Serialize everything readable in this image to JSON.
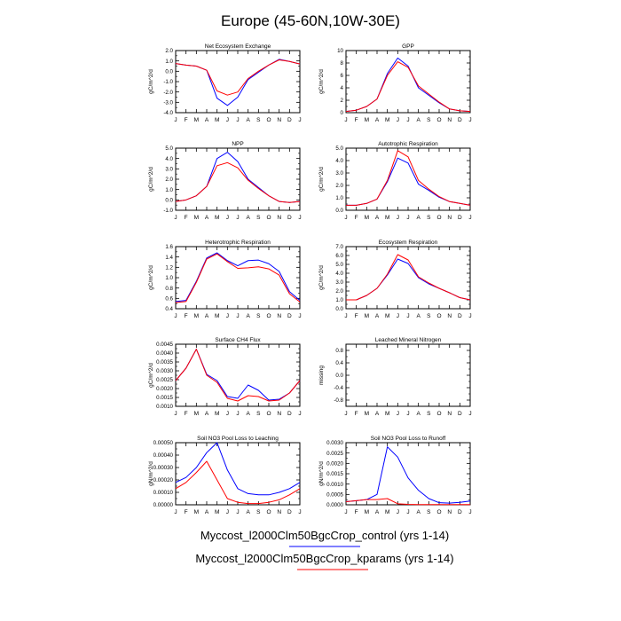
{
  "figure": {
    "title": "Europe (45-60N,10W-30E)",
    "legend": {
      "placement": "bottom-right",
      "entries": [
        {
          "label": "Myccost_l2000Clm50BgcCrop_control (yrs 1-14)",
          "color": "#0000ff"
        },
        {
          "label": "Myccost_l2000Clm50BgcCrop_kparams (yrs 1-14)",
          "color": "#ff0000"
        }
      ]
    }
  },
  "chart_data": [
    {
      "type": "line",
      "title": "Net Ecosystem Exchange",
      "ylabel": "gC/m^2/d",
      "x": [
        "J",
        "F",
        "M",
        "A",
        "M",
        "J",
        "J",
        "A",
        "S",
        "O",
        "N",
        "D",
        "J"
      ],
      "ylim": [
        -4.0,
        2.0
      ],
      "yticks": [
        "2.0",
        "1.0",
        "0.0",
        "-1.0",
        "-2.0",
        "-3.0",
        "-4.0"
      ],
      "yminor": [
        1.5,
        0.5,
        -0.5,
        -1.5,
        -2.5,
        -3.5
      ],
      "series": [
        {
          "color": "#0000ff",
          "values": [
            0.75,
            0.6,
            0.5,
            0.1,
            -2.6,
            -3.3,
            -2.5,
            -0.8,
            -0.1,
            0.6,
            1.15,
            0.95,
            0.7
          ]
        },
        {
          "color": "#ff0000",
          "values": [
            0.75,
            0.6,
            0.5,
            0.1,
            -1.9,
            -2.3,
            -2.0,
            -0.7,
            0.0,
            0.6,
            1.1,
            0.95,
            0.7
          ]
        }
      ]
    },
    {
      "type": "line",
      "title": "GPP",
      "ylabel": "gC/m^2/d",
      "x": [
        "J",
        "F",
        "M",
        "A",
        "M",
        "J",
        "J",
        "A",
        "S",
        "O",
        "N",
        "D",
        "J"
      ],
      "ylim": [
        0,
        10
      ],
      "yticks": [
        "10",
        "8",
        "6",
        "4",
        "2",
        "0"
      ],
      "yminor": [
        9,
        7,
        5,
        3,
        1
      ],
      "series": [
        {
          "color": "#0000ff",
          "values": [
            0.2,
            0.4,
            1.0,
            2.2,
            6.3,
            8.8,
            7.5,
            4.0,
            2.8,
            1.6,
            0.6,
            0.3,
            0.2
          ]
        },
        {
          "color": "#ff0000",
          "values": [
            0.2,
            0.4,
            1.0,
            2.2,
            6.0,
            8.2,
            7.3,
            4.3,
            3.0,
            1.7,
            0.6,
            0.3,
            0.2
          ]
        }
      ]
    },
    {
      "type": "line",
      "title": "NPP",
      "ylabel": "gC/m^2/d",
      "x": [
        "J",
        "F",
        "M",
        "A",
        "M",
        "J",
        "J",
        "A",
        "S",
        "O",
        "N",
        "D",
        "J"
      ],
      "ylim": [
        -1.0,
        5.0
      ],
      "yticks": [
        "5.0",
        "4.0",
        "3.0",
        "2.0",
        "1.0",
        "0.0",
        "-1.0"
      ],
      "yminor": [
        4.5,
        3.5,
        2.5,
        1.5,
        0.5,
        -0.5
      ],
      "series": [
        {
          "color": "#0000ff",
          "values": [
            -0.15,
            0.0,
            0.4,
            1.3,
            4.0,
            4.6,
            3.7,
            2.0,
            1.2,
            0.4,
            -0.15,
            -0.25,
            -0.15
          ]
        },
        {
          "color": "#ff0000",
          "values": [
            -0.15,
            0.0,
            0.4,
            1.3,
            3.3,
            3.6,
            3.1,
            1.9,
            1.1,
            0.4,
            -0.15,
            -0.25,
            -0.15
          ]
        }
      ]
    },
    {
      "type": "line",
      "title": "Autotrophic Respiration",
      "ylabel": "gC/m^2/d",
      "x": [
        "J",
        "F",
        "M",
        "A",
        "M",
        "J",
        "J",
        "A",
        "S",
        "O",
        "N",
        "D",
        "J"
      ],
      "ylim": [
        0.0,
        5.0
      ],
      "yticks": [
        "5.0",
        "4.0",
        "3.0",
        "2.0",
        "1.0",
        "0.0"
      ],
      "yminor": [
        4.5,
        3.5,
        2.5,
        1.5,
        0.5
      ],
      "series": [
        {
          "color": "#0000ff",
          "values": [
            0.4,
            0.4,
            0.55,
            0.9,
            2.3,
            4.2,
            3.8,
            2.1,
            1.6,
            1.05,
            0.7,
            0.55,
            0.4
          ]
        },
        {
          "color": "#ff0000",
          "values": [
            0.4,
            0.4,
            0.55,
            0.9,
            2.4,
            4.8,
            4.3,
            2.4,
            1.7,
            1.1,
            0.7,
            0.55,
            0.4
          ]
        }
      ]
    },
    {
      "type": "line",
      "title": "Heterotrophic Respiration",
      "ylabel": "gC/m^2/d",
      "x": [
        "J",
        "F",
        "M",
        "A",
        "M",
        "J",
        "J",
        "A",
        "S",
        "O",
        "N",
        "D",
        "J"
      ],
      "ylim": [
        0.4,
        1.6
      ],
      "yticks": [
        "1.6",
        "1.4",
        "1.2",
        "1.0",
        "0.8",
        "0.6",
        "0.4"
      ],
      "yminor": [
        1.5,
        1.3,
        1.1,
        0.9,
        0.7,
        0.5
      ],
      "series": [
        {
          "color": "#0000ff",
          "values": [
            0.54,
            0.56,
            0.93,
            1.38,
            1.48,
            1.33,
            1.23,
            1.33,
            1.34,
            1.27,
            1.12,
            0.73,
            0.56
          ]
        },
        {
          "color": "#ff0000",
          "values": [
            0.52,
            0.54,
            0.91,
            1.36,
            1.46,
            1.31,
            1.18,
            1.19,
            1.21,
            1.17,
            1.05,
            0.69,
            0.53
          ]
        }
      ]
    },
    {
      "type": "line",
      "title": "Ecosystem Respiration",
      "ylabel": "gC/m^2/d",
      "x": [
        "J",
        "F",
        "M",
        "A",
        "M",
        "J",
        "J",
        "A",
        "S",
        "O",
        "N",
        "D",
        "J"
      ],
      "ylim": [
        0.0,
        7.0
      ],
      "yticks": [
        "7.0",
        "6.0",
        "5.0",
        "4.0",
        "3.0",
        "2.0",
        "1.0",
        "0.0"
      ],
      "yminor": [
        6.5,
        5.5,
        4.5,
        3.5,
        2.5,
        1.5,
        0.5
      ],
      "series": [
        {
          "color": "#0000ff",
          "values": [
            1.0,
            1.0,
            1.5,
            2.3,
            3.8,
            5.6,
            5.1,
            3.5,
            2.8,
            2.3,
            1.8,
            1.25,
            1.0
          ]
        },
        {
          "color": "#ff0000",
          "values": [
            1.0,
            1.0,
            1.5,
            2.3,
            3.9,
            6.1,
            5.5,
            3.6,
            2.9,
            2.3,
            1.8,
            1.25,
            1.0
          ]
        }
      ]
    },
    {
      "type": "line",
      "title": "Surface CH4 Flux",
      "ylabel": "gC/m^2/d",
      "x": [
        "J",
        "F",
        "M",
        "A",
        "M",
        "J",
        "J",
        "A",
        "S",
        "O",
        "N",
        "D",
        "J"
      ],
      "ylim": [
        0.001,
        0.0045
      ],
      "yticks": [
        "0.0045",
        "0.0040",
        "0.0035",
        "0.0030",
        "0.0025",
        "0.0020",
        "0.0015",
        "0.0010"
      ],
      "yminor": [
        0.00425,
        0.00375,
        0.00325,
        0.00275,
        0.00225,
        0.00175,
        0.00125
      ],
      "series": [
        {
          "color": "#0000ff",
          "values": [
            0.00245,
            0.00315,
            0.00422,
            0.0028,
            0.00245,
            0.00155,
            0.00145,
            0.0022,
            0.0019,
            0.00135,
            0.0014,
            0.00175,
            0.00245
          ]
        },
        {
          "color": "#ff0000",
          "values": [
            0.00245,
            0.00315,
            0.00422,
            0.00275,
            0.00235,
            0.00145,
            0.0013,
            0.0016,
            0.00155,
            0.0013,
            0.00135,
            0.00175,
            0.00245
          ]
        }
      ]
    },
    {
      "type": "line",
      "title": "Leached Mineral Nitrogen",
      "ylabel": "missing",
      "x": [
        "J",
        "F",
        "M",
        "A",
        "M",
        "J",
        "J",
        "A",
        "S",
        "O",
        "N",
        "D",
        "J"
      ],
      "ylim": [
        -1.0,
        1.0
      ],
      "yticks": [
        "0.8",
        "0.4",
        "0.0",
        "-0.4",
        "-0.8"
      ],
      "ytickvals": [
        0.8,
        0.4,
        0.0,
        -0.4,
        -0.8
      ],
      "yminor": [
        0.6,
        0.2,
        -0.2,
        -0.6
      ],
      "series": []
    },
    {
      "type": "line",
      "title": "Soil NO3 Pool Loss to Leaching",
      "ylabel": "gN/m^2/d",
      "x": [
        "J",
        "F",
        "M",
        "A",
        "M",
        "J",
        "J",
        "A",
        "S",
        "O",
        "N",
        "D",
        "J"
      ],
      "ylim": [
        0.0,
        0.0005
      ],
      "yticks": [
        "0.00050",
        "0.00040",
        "0.00030",
        "0.00020",
        "0.00010",
        "0.00000"
      ],
      "yminor": [
        0.00045,
        0.00035,
        0.00025,
        0.00015,
        5e-05
      ],
      "series": [
        {
          "color": "#0000ff",
          "values": [
            0.00018,
            0.00022,
            0.0003,
            0.00042,
            0.0005,
            0.00028,
            0.00013,
            9e-05,
            8e-05,
            8e-05,
            0.0001,
            0.00013,
            0.00018
          ]
        },
        {
          "color": "#ff0000",
          "values": [
            0.00013,
            0.00018,
            0.00026,
            0.00035,
            0.0002,
            5e-05,
            2e-05,
            1e-05,
            1e-05,
            2e-05,
            4e-05,
            8e-05,
            0.00013
          ]
        }
      ]
    },
    {
      "type": "line",
      "title": "Soil NO3 Pool Loss to Runoff",
      "ylabel": "gN/m^2/d",
      "x": [
        "J",
        "F",
        "M",
        "A",
        "M",
        "J",
        "J",
        "A",
        "S",
        "O",
        "N",
        "D",
        "J"
      ],
      "ylim": [
        0.0,
        0.003
      ],
      "yticks": [
        "0.0030",
        "0.0025",
        "0.0020",
        "0.0015",
        "0.0010",
        "0.0005",
        "0.0000"
      ],
      "yminor": [
        0.00275,
        0.00225,
        0.00175,
        0.00125,
        0.00075,
        0.00025
      ],
      "series": [
        {
          "color": "#0000ff",
          "values": [
            0.00015,
            0.0002,
            0.00025,
            0.0005,
            0.0028,
            0.0023,
            0.0013,
            0.0007,
            0.0003,
            0.0001,
            8e-05,
            0.00012,
            0.00018
          ]
        },
        {
          "color": "#ff0000",
          "values": [
            0.00015,
            0.0002,
            0.00025,
            0.00025,
            0.0003,
            5e-05,
            2e-05,
            1e-05,
            1e-05,
            1e-05,
            1e-05,
            1e-05,
            1e-05
          ]
        }
      ]
    }
  ]
}
